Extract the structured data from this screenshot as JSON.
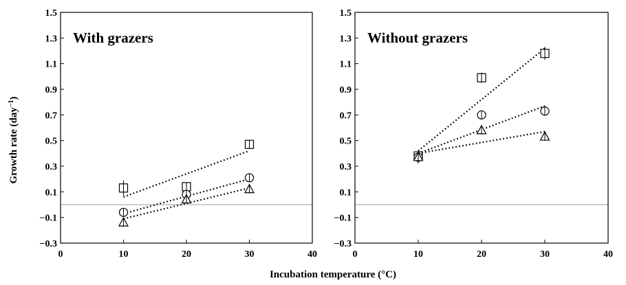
{
  "chart_data": [
    {
      "type": "scatter",
      "title": "With grazers",
      "ylabel": "Growth rate (day",
      "ylabel_sup": "−1",
      "ylabel_close": ")",
      "xlim": [
        0,
        40
      ],
      "ylim": [
        -0.3,
        1.5
      ],
      "x_ticks": [
        "0",
        "10",
        "20",
        "30",
        "40"
      ],
      "y_ticks": [
        "−0.3",
        "−0.1",
        "0.1",
        "0.3",
        "0.5",
        "0.7",
        "0.9",
        "1.1",
        "1.3",
        "1.5"
      ],
      "reference_line_y": 0,
      "grid": false,
      "legend": "none",
      "series": [
        {
          "marker": "square",
          "x": [
            10,
            20,
            30
          ],
          "y": [
            0.13,
            0.14,
            0.47
          ],
          "err": [
            0.06,
            0.02,
            0.02
          ],
          "trend": [
            [
              10,
              0.06
            ],
            [
              30,
              0.42
            ]
          ]
        },
        {
          "marker": "circle",
          "x": [
            10,
            20,
            30
          ],
          "y": [
            -0.06,
            0.08,
            0.21
          ],
          "err": [
            0.02,
            0.02,
            0.03
          ],
          "trend": [
            [
              10,
              -0.07
            ],
            [
              30,
              0.2
            ]
          ]
        },
        {
          "marker": "triangle",
          "x": [
            10,
            20,
            30
          ],
          "y": [
            -0.14,
            0.04,
            0.12
          ],
          "err": [
            0.02,
            0.02,
            0.02
          ],
          "trend": [
            [
              10,
              -0.11
            ],
            [
              30,
              0.13
            ]
          ]
        }
      ]
    },
    {
      "type": "scatter",
      "title": "Without grazers",
      "xlim": [
        0,
        40
      ],
      "ylim": [
        -0.3,
        1.5
      ],
      "x_ticks": [
        "0",
        "10",
        "20",
        "30",
        "40"
      ],
      "y_ticks": [
        "−0.3",
        "−0.1",
        "0.1",
        "0.3",
        "0.5",
        "0.7",
        "0.9",
        "1.1",
        "1.3",
        "1.5"
      ],
      "reference_line_y": 0,
      "grid": false,
      "legend": "none",
      "series": [
        {
          "marker": "square",
          "x": [
            10,
            20,
            30
          ],
          "y": [
            0.38,
            0.99,
            1.18
          ],
          "err": [
            0.03,
            0.04,
            0.05
          ],
          "trend": [
            [
              10,
              0.42
            ],
            [
              30,
              1.22
            ]
          ]
        },
        {
          "marker": "circle",
          "x": [
            10,
            20,
            30
          ],
          "y": [
            0.37,
            0.7,
            0.73
          ],
          "err": [
            0.03,
            0.02,
            0.03
          ],
          "trend": [
            [
              10,
              0.4
            ],
            [
              30,
              0.77
            ]
          ]
        },
        {
          "marker": "triangle",
          "x": [
            10,
            20,
            30
          ],
          "y": [
            0.37,
            0.58,
            0.53
          ],
          "err": [
            0.05,
            0.02,
            0.02
          ],
          "trend": [
            [
              10,
              0.4
            ],
            [
              30,
              0.57
            ]
          ]
        }
      ]
    }
  ],
  "xlabel": "Incubation temperature (°C)"
}
